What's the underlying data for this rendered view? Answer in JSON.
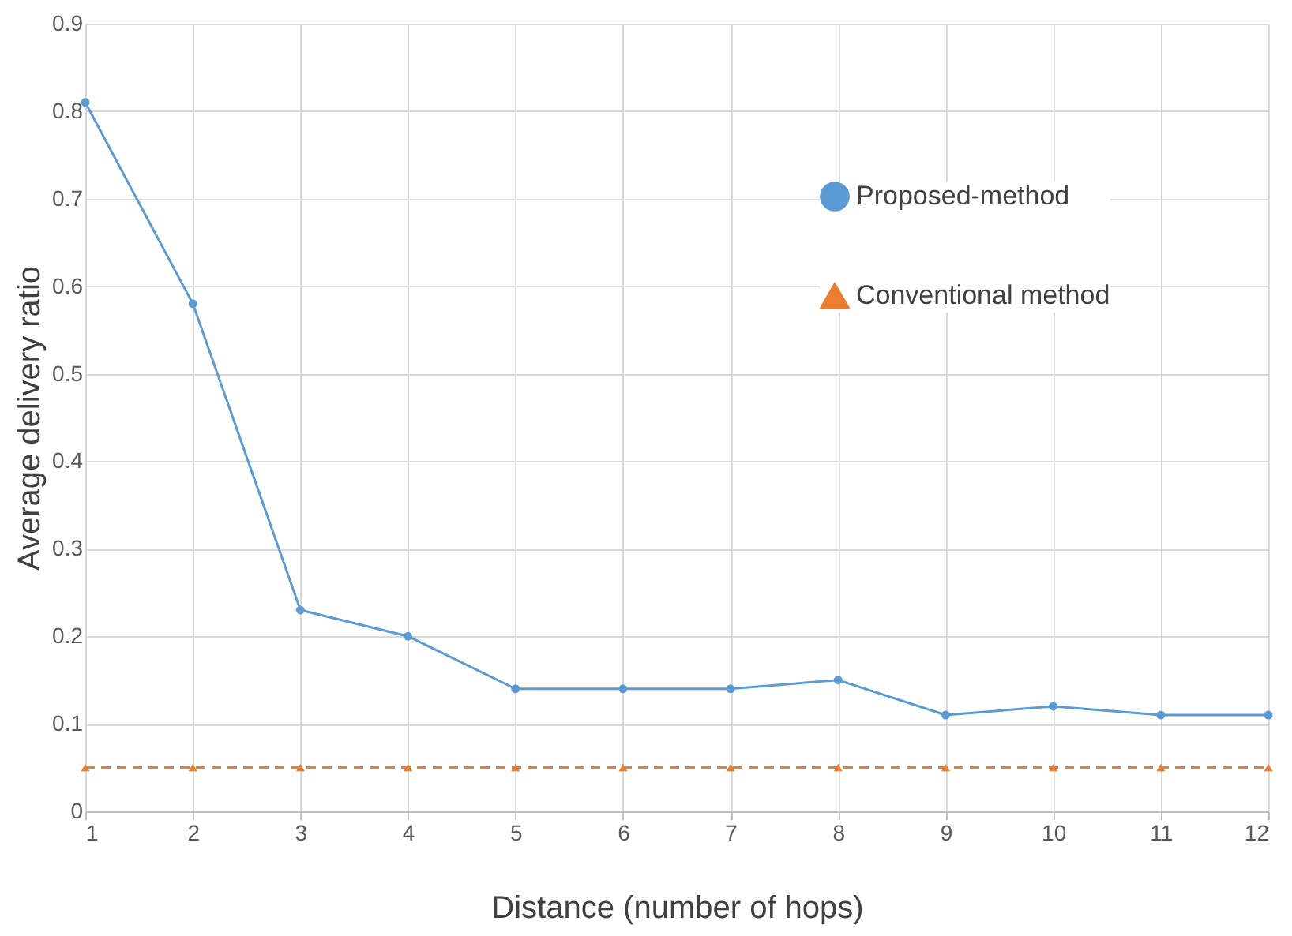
{
  "chart_data": {
    "type": "line",
    "xlabel": "Distance (number of hops)",
    "ylabel": "Average delivery ratio",
    "x": [
      1,
      2,
      3,
      4,
      5,
      6,
      7,
      8,
      9,
      10,
      11,
      12
    ],
    "series": [
      {
        "name": "Proposed-method",
        "color": "#5b9bd5",
        "marker": "circle",
        "line_style": "solid",
        "values": [
          0.81,
          0.58,
          0.23,
          0.2,
          0.14,
          0.14,
          0.14,
          0.15,
          0.11,
          0.12,
          0.11,
          0.11
        ]
      },
      {
        "name": "Conventional method",
        "color": "#ed7d31",
        "marker": "triangle",
        "line_style": "dashed",
        "values": [
          0.05,
          0.05,
          0.05,
          0.05,
          0.05,
          0.05,
          0.05,
          0.05,
          0.05,
          0.05,
          0.05,
          0.05
        ]
      }
    ],
    "xlim": [
      1,
      12
    ],
    "xticks": [
      1,
      2,
      3,
      4,
      5,
      6,
      7,
      8,
      9,
      10,
      11,
      12
    ],
    "ylim": [
      0,
      0.9
    ],
    "yticks": [
      0,
      0.1,
      0.2,
      0.3,
      0.4,
      0.5,
      0.6,
      0.7,
      0.8,
      0.9
    ],
    "grid": true,
    "legend": "top right"
  }
}
